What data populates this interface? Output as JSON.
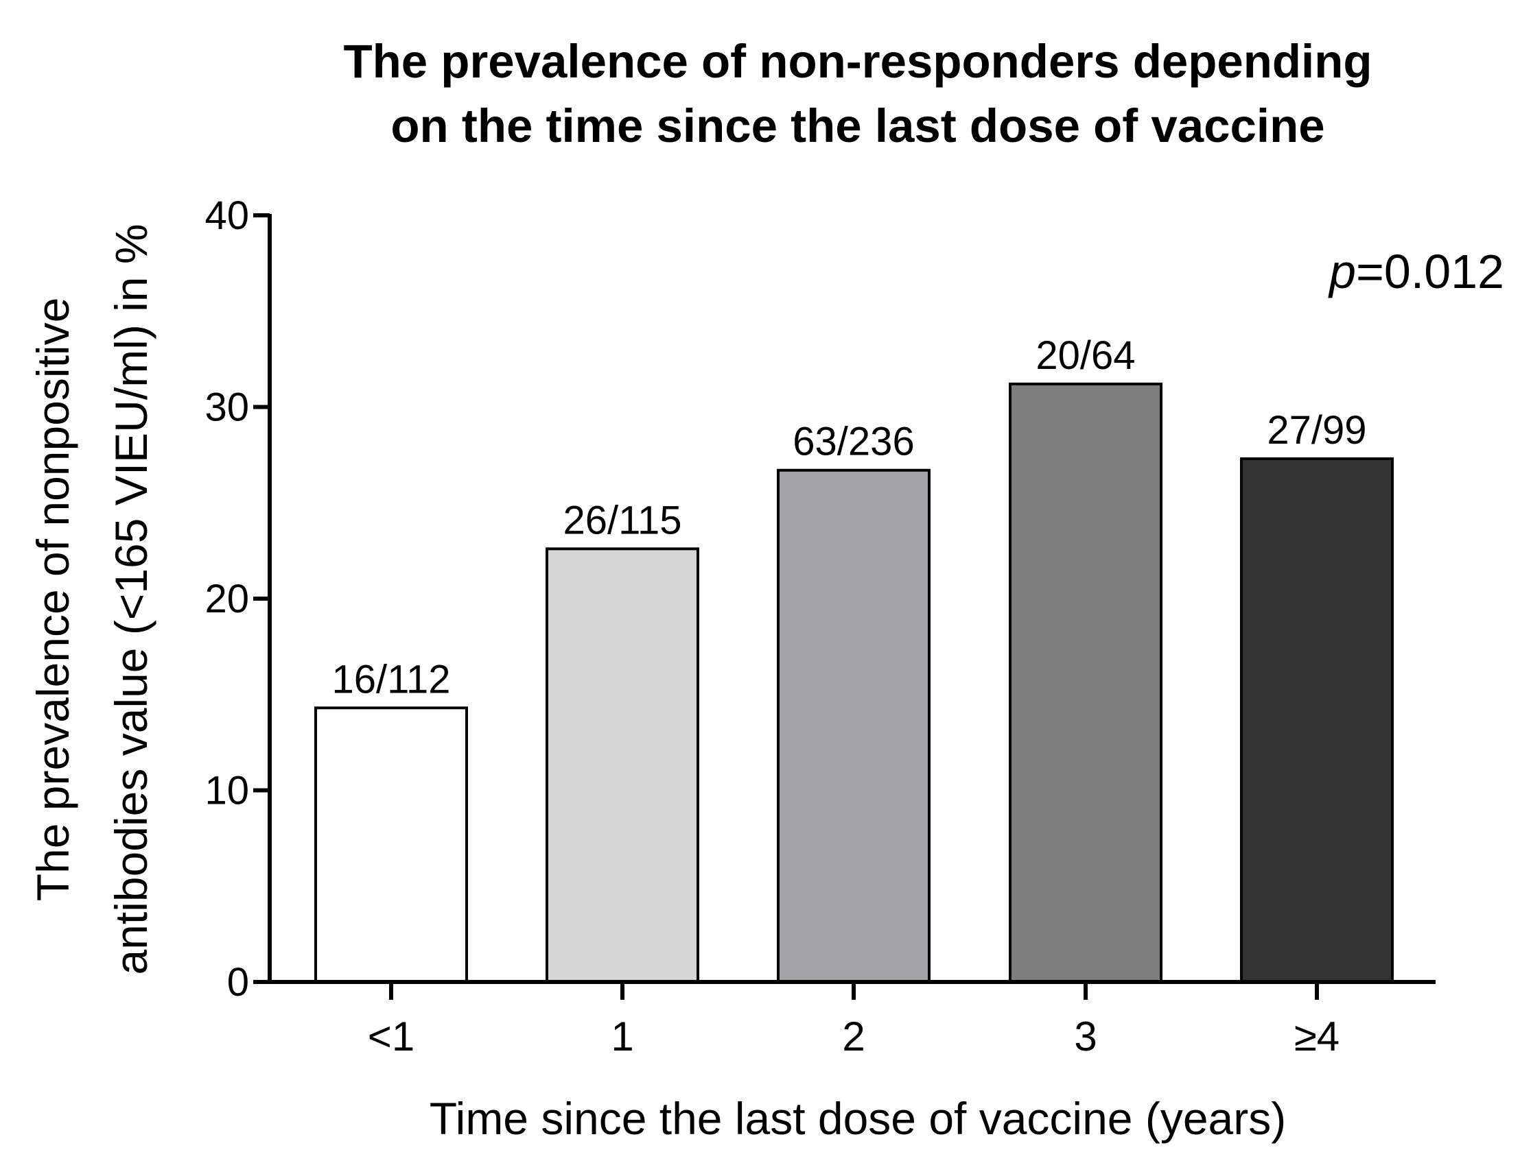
{
  "chart_data": {
    "type": "bar",
    "title_lines": [
      "The prevalence of non-responders depending",
      "on the time since the last dose of vaccine"
    ],
    "xlabel": "Time since the last dose of vaccine (years)",
    "ylabel_lines": [
      "The prevalence of nonpositive",
      "antibodies value (<165 VIEU/ml) in %"
    ],
    "categories": [
      "<1",
      "1",
      "2",
      "3",
      "≥4"
    ],
    "values": [
      14.3,
      22.6,
      26.7,
      31.2,
      27.3
    ],
    "data_labels": [
      "16/112",
      "26/115",
      "63/236",
      "20/64",
      "27/99"
    ],
    "bar_colors": [
      "#ffffff",
      "#d6d6d6",
      "#a3a3a8",
      "#7f7f7f",
      "#333333"
    ],
    "ylim": [
      0,
      40
    ],
    "yticks": [
      "0",
      "10",
      "20",
      "30",
      "40"
    ],
    "annotation": {
      "p_symbol": "p",
      "p_text": "=0.012"
    },
    "grid": false,
    "legend": "none"
  }
}
